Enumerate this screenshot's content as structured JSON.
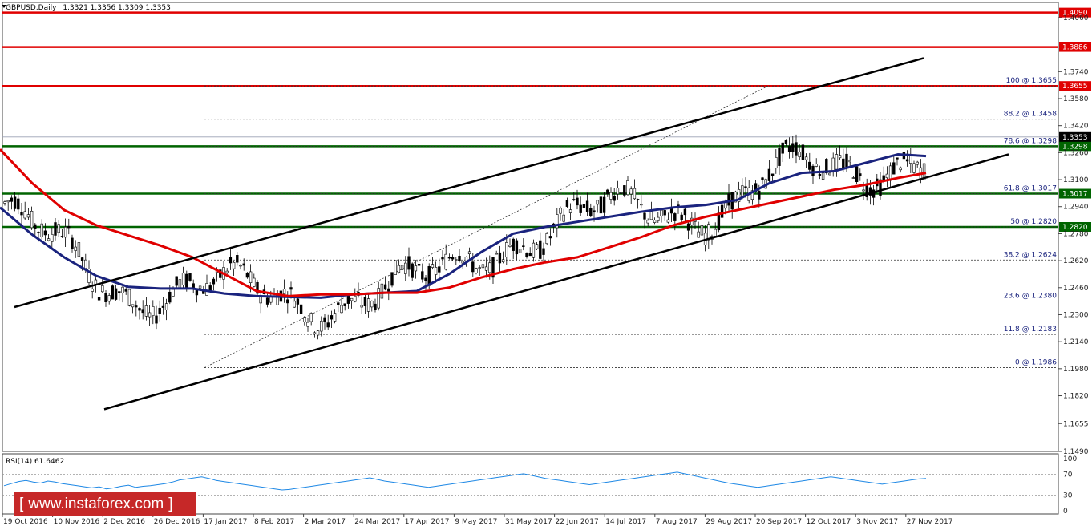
{
  "header": {
    "symbol": "GBPUSD,Daily",
    "ohlc": "1.3321 1.3356 1.3309 1.3353"
  },
  "chart_data": {
    "type": "candlestick",
    "price_axis": {
      "min": 1.149,
      "max": 1.415,
      "ticks": [
        "1.4060",
        "1.3740",
        "1.3580",
        "1.3420",
        "1.3260",
        "1.3100",
        "1.2940",
        "1.2780",
        "1.2620",
        "1.2460",
        "1.2300",
        "1.2140",
        "1.1980",
        "1.1820",
        "1.1655",
        "1.1490"
      ]
    },
    "date_labels": [
      "19 Oct 2016",
      "10 Nov 2016",
      "2 Dec 2016",
      "26 Dec 2016",
      "17 Jan 2017",
      "8 Feb 2017",
      "2 Mar 2017",
      "24 Mar 2017",
      "17 Apr 2017",
      "9 May 2017",
      "31 May 2017",
      "22 Jun 2017",
      "14 Jul 2017",
      "7 Aug 2017",
      "29 Aug 2017",
      "20 Sep 2017",
      "12 Oct 2017",
      "3 Nov 2017",
      "27 Nov 2017"
    ],
    "horizontal_levels": [
      {
        "label": "1.4090",
        "value": 1.409,
        "color": "#e00000"
      },
      {
        "label": "1.3886",
        "value": 1.3886,
        "color": "#e00000"
      },
      {
        "label": "1.3655",
        "value": 1.3655,
        "color": "#e00000"
      },
      {
        "label": "1.3298",
        "value": 1.3298,
        "color": "#006400"
      },
      {
        "label": "1.3017",
        "value": 1.3017,
        "color": "#006400"
      },
      {
        "label": "1.2820",
        "value": 1.282,
        "color": "#006400"
      }
    ],
    "current_price": {
      "label": "1.3353",
      "value": 1.3353
    },
    "fibonacci": [
      {
        "label": "100 @ 1.3655",
        "value": 1.3655
      },
      {
        "label": "88.2 @ 1.3458",
        "value": 1.3458
      },
      {
        "label": "78.6 @ 1.3298",
        "value": 1.3298
      },
      {
        "label": "61.8 @ 1.3017",
        "value": 1.3017
      },
      {
        "label": "50 @ 1.2820",
        "value": 1.282
      },
      {
        "label": "38.2 @ 1.2624",
        "value": 1.2624
      },
      {
        "label": "23.6 @ 1.2380",
        "value": 1.238
      },
      {
        "label": "11.8 @ 1.2183",
        "value": 1.2183
      },
      {
        "label": "0 @ 1.1986",
        "value": 1.1986
      }
    ],
    "moving_averages": [
      {
        "color": "#1a237e",
        "points": [
          [
            0,
            1.2935
          ],
          [
            40,
            1.2775
          ],
          [
            80,
            1.264
          ],
          [
            120,
            1.253
          ],
          [
            160,
            1.2465
          ],
          [
            200,
            1.2455
          ],
          [
            240,
            1.2455
          ],
          [
            280,
            1.2425
          ],
          [
            320,
            1.241
          ],
          [
            360,
            1.2405
          ],
          [
            400,
            1.24
          ],
          [
            440,
            1.242
          ],
          [
            480,
            1.243
          ],
          [
            520,
            1.244
          ],
          [
            560,
            1.254
          ],
          [
            600,
            1.267
          ],
          [
            640,
            1.278
          ],
          [
            680,
            1.282
          ],
          [
            720,
            1.285
          ],
          [
            760,
            1.288
          ],
          [
            800,
            1.291
          ],
          [
            840,
            1.2935
          ],
          [
            880,
            1.295
          ],
          [
            920,
            1.298
          ],
          [
            960,
            1.308
          ],
          [
            1000,
            1.314
          ],
          [
            1040,
            1.315
          ],
          [
            1080,
            1.32
          ],
          [
            1120,
            1.325
          ],
          [
            1155,
            1.324
          ]
        ]
      },
      {
        "color": "#e00000",
        "points": [
          [
            0,
            1.328
          ],
          [
            40,
            1.308
          ],
          [
            80,
            1.292
          ],
          [
            120,
            1.283
          ],
          [
            160,
            1.277
          ],
          [
            200,
            1.271
          ],
          [
            240,
            1.264
          ],
          [
            280,
            1.254
          ],
          [
            320,
            1.244
          ],
          [
            360,
            1.241
          ],
          [
            400,
            1.242
          ],
          [
            440,
            1.242
          ],
          [
            480,
            1.243
          ],
          [
            520,
            1.243
          ],
          [
            560,
            1.246
          ],
          [
            600,
            1.252
          ],
          [
            640,
            1.257
          ],
          [
            680,
            1.261
          ],
          [
            720,
            1.264
          ],
          [
            760,
            1.27
          ],
          [
            800,
            1.276
          ],
          [
            840,
            1.283
          ],
          [
            880,
            1.288
          ],
          [
            920,
            1.292
          ],
          [
            960,
            1.296
          ],
          [
            1000,
            1.3
          ],
          [
            1040,
            1.304
          ],
          [
            1080,
            1.307
          ],
          [
            1120,
            1.311
          ],
          [
            1155,
            1.314
          ]
        ]
      }
    ],
    "trend_lines": [
      {
        "from": [
          18,
          1.2345
        ],
        "to": [
          1152,
          1.382
        ]
      },
      {
        "from": [
          130,
          1.174
        ],
        "to": [
          1258,
          1.325
        ]
      }
    ],
    "rsi": {
      "label": "RSI(14) 61.6462",
      "levels": [
        100,
        70,
        30,
        0
      ],
      "values": [
        48,
        52,
        56,
        58,
        55,
        53,
        57,
        55,
        52,
        50,
        48,
        46,
        44,
        46,
        42,
        44,
        47,
        49,
        45,
        47,
        48,
        50,
        52,
        55,
        59,
        61,
        63,
        65,
        62,
        58,
        56,
        54,
        52,
        50,
        48,
        46,
        44,
        42,
        40,
        41,
        43,
        45,
        47,
        49,
        51,
        53,
        55,
        57,
        59,
        61,
        63,
        60,
        57,
        55,
        53,
        51,
        49,
        47,
        45,
        47,
        49,
        51,
        53,
        55,
        57,
        59,
        61,
        63,
        65,
        67,
        69,
        71,
        68,
        65,
        62,
        60,
        58,
        56,
        54,
        52,
        50,
        52,
        54,
        56,
        58,
        60,
        62,
        64,
        66,
        68,
        70,
        72,
        74,
        71,
        68,
        65,
        62,
        59,
        56,
        53,
        51,
        49,
        47,
        45,
        47,
        49,
        51,
        53,
        55,
        57,
        59,
        61,
        63,
        65,
        63,
        61,
        59,
        57,
        55,
        53,
        51,
        53,
        55,
        57,
        59,
        61,
        62
      ]
    }
  },
  "branding": {
    "logo": "instaforex",
    "logo_text": "www.instaforex.com"
  }
}
